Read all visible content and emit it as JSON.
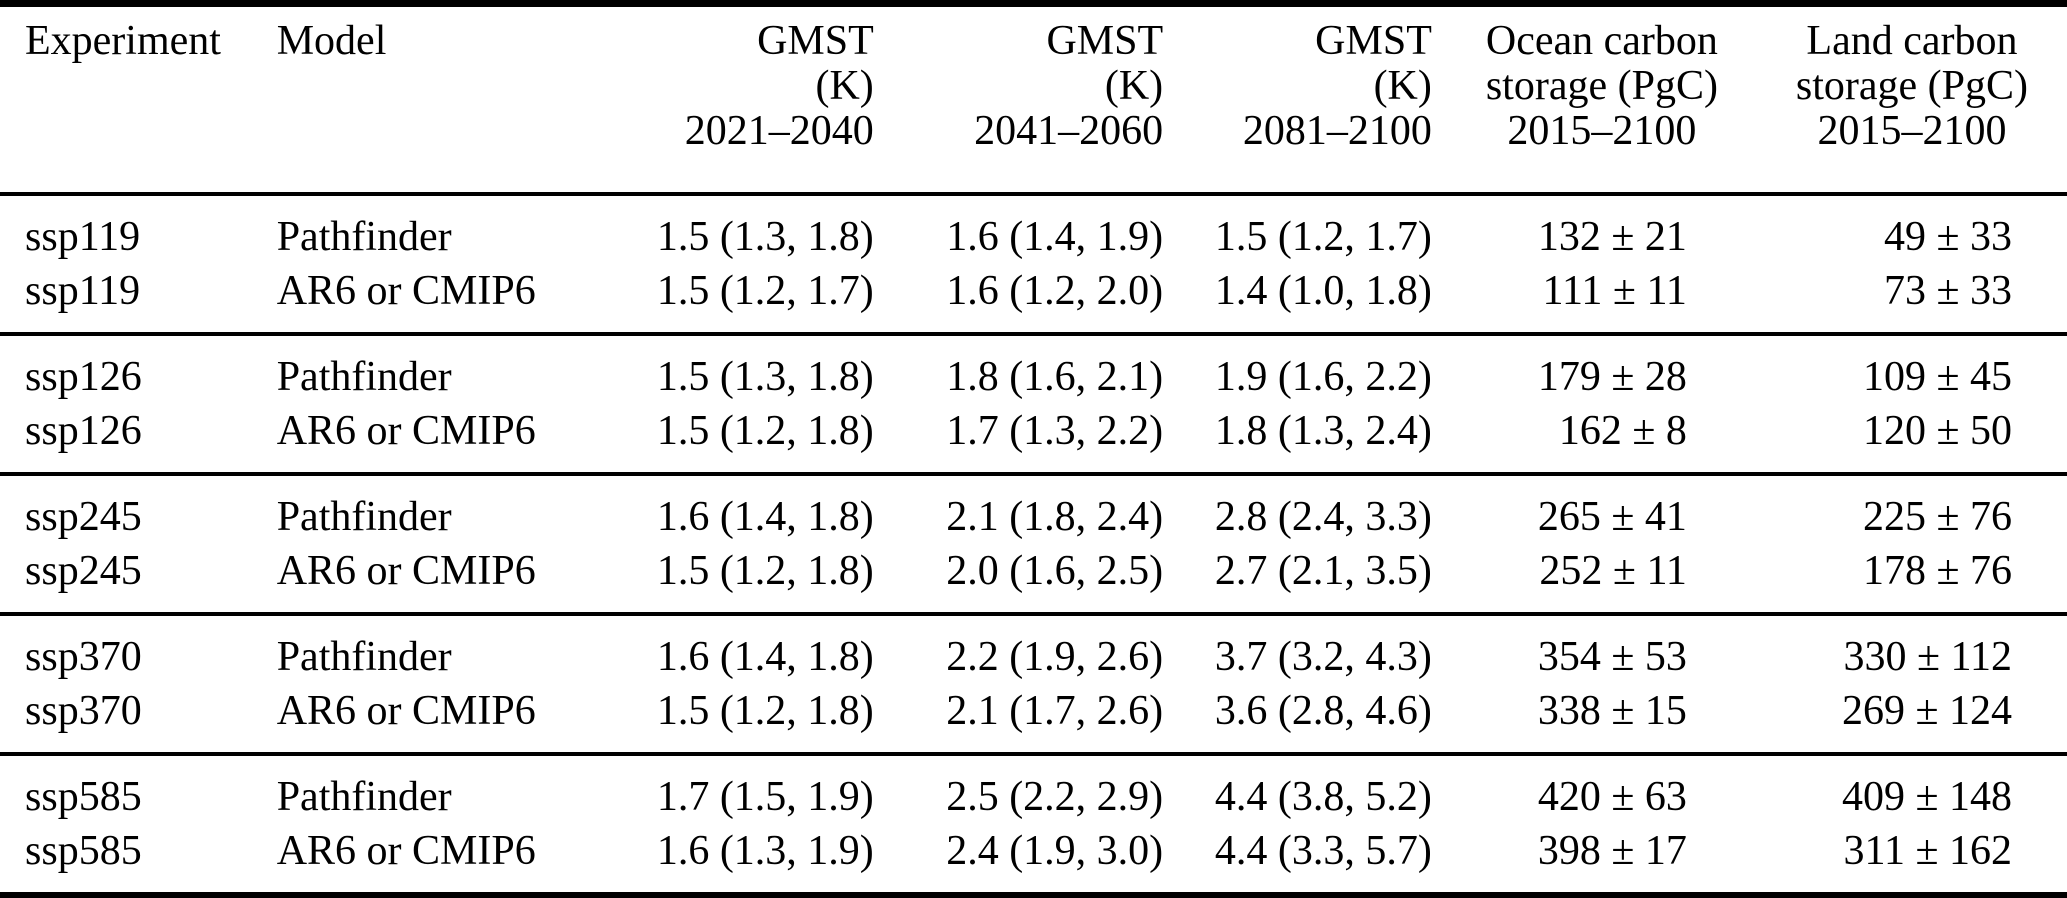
{
  "table": {
    "columns": [
      {
        "key": "experiment",
        "lines": [
          "Experiment",
          "",
          ""
        ]
      },
      {
        "key": "model",
        "lines": [
          "Model",
          "",
          ""
        ]
      },
      {
        "key": "gmst_2021_2040",
        "lines": [
          "GMST",
          "(K)",
          "2021–2040"
        ]
      },
      {
        "key": "gmst_2041_2060",
        "lines": [
          "GMST",
          "(K)",
          "2041–2060"
        ]
      },
      {
        "key": "gmst_2081_2100",
        "lines": [
          "GMST",
          "(K)",
          "2081–2100"
        ]
      },
      {
        "key": "ocean_carbon_storage",
        "lines": [
          "Ocean carbon",
          "storage (PgC)",
          "2015–2100"
        ]
      },
      {
        "key": "land_carbon_storage",
        "lines": [
          "Land carbon",
          "storage (PgC)",
          "2015–2100"
        ]
      }
    ],
    "groups": [
      {
        "rows": [
          {
            "experiment": "ssp119",
            "model": "Pathfinder",
            "gmst_2021_2040": "1.5 (1.3, 1.8)",
            "gmst_2041_2060": "1.6 (1.4, 1.9)",
            "gmst_2081_2100": "1.5 (1.2, 1.7)",
            "ocean_carbon_storage": "132 ± 21",
            "land_carbon_storage": "49 ± 33"
          },
          {
            "experiment": "ssp119",
            "model": "AR6 or CMIP6",
            "gmst_2021_2040": "1.5 (1.2, 1.7)",
            "gmst_2041_2060": "1.6 (1.2, 2.0)",
            "gmst_2081_2100": "1.4 (1.0, 1.8)",
            "ocean_carbon_storage": "111 ± 11",
            "land_carbon_storage": "73 ± 33"
          }
        ]
      },
      {
        "rows": [
          {
            "experiment": "ssp126",
            "model": "Pathfinder",
            "gmst_2021_2040": "1.5 (1.3, 1.8)",
            "gmst_2041_2060": "1.8 (1.6, 2.1)",
            "gmst_2081_2100": "1.9 (1.6, 2.2)",
            "ocean_carbon_storage": "179 ± 28",
            "land_carbon_storage": "109 ± 45"
          },
          {
            "experiment": "ssp126",
            "model": "AR6 or CMIP6",
            "gmst_2021_2040": "1.5 (1.2, 1.8)",
            "gmst_2041_2060": "1.7 (1.3, 2.2)",
            "gmst_2081_2100": "1.8 (1.3, 2.4)",
            "ocean_carbon_storage": "162 ± 8",
            "land_carbon_storage": "120 ± 50"
          }
        ]
      },
      {
        "rows": [
          {
            "experiment": "ssp245",
            "model": "Pathfinder",
            "gmst_2021_2040": "1.6 (1.4, 1.8)",
            "gmst_2041_2060": "2.1 (1.8, 2.4)",
            "gmst_2081_2100": "2.8 (2.4, 3.3)",
            "ocean_carbon_storage": "265 ± 41",
            "land_carbon_storage": "225 ± 76"
          },
          {
            "experiment": "ssp245",
            "model": "AR6 or CMIP6",
            "gmst_2021_2040": "1.5 (1.2, 1.8)",
            "gmst_2041_2060": "2.0 (1.6, 2.5)",
            "gmst_2081_2100": "2.7 (2.1, 3.5)",
            "ocean_carbon_storage": "252 ± 11",
            "land_carbon_storage": "178 ± 76"
          }
        ]
      },
      {
        "rows": [
          {
            "experiment": "ssp370",
            "model": "Pathfinder",
            "gmst_2021_2040": "1.6 (1.4, 1.8)",
            "gmst_2041_2060": "2.2 (1.9, 2.6)",
            "gmst_2081_2100": "3.7 (3.2, 4.3)",
            "ocean_carbon_storage": "354 ± 53",
            "land_carbon_storage": "330 ± 112"
          },
          {
            "experiment": "ssp370",
            "model": "AR6 or CMIP6",
            "gmst_2021_2040": "1.5 (1.2, 1.8)",
            "gmst_2041_2060": "2.1 (1.7, 2.6)",
            "gmst_2081_2100": "3.6 (2.8, 4.6)",
            "ocean_carbon_storage": "338 ± 15",
            "land_carbon_storage": "269 ± 124"
          }
        ]
      },
      {
        "rows": [
          {
            "experiment": "ssp585",
            "model": "Pathfinder",
            "gmst_2021_2040": "1.7 (1.5, 1.9)",
            "gmst_2041_2060": "2.5 (2.2, 2.9)",
            "gmst_2081_2100": "4.4 (3.8, 5.2)",
            "ocean_carbon_storage": "420 ± 63",
            "land_carbon_storage": "409 ± 148"
          },
          {
            "experiment": "ssp585",
            "model": "AR6 or CMIP6",
            "gmst_2021_2040": "1.6 (1.3, 1.9)",
            "gmst_2041_2060": "2.4 (1.9, 3.0)",
            "gmst_2081_2100": "4.4 (3.3, 5.7)",
            "ocean_carbon_storage": "398 ± 17",
            "land_carbon_storage": "311 ± 162"
          }
        ]
      }
    ]
  },
  "colors": {
    "text": "#000000",
    "background": "#ffffff",
    "rule": "#000000"
  }
}
